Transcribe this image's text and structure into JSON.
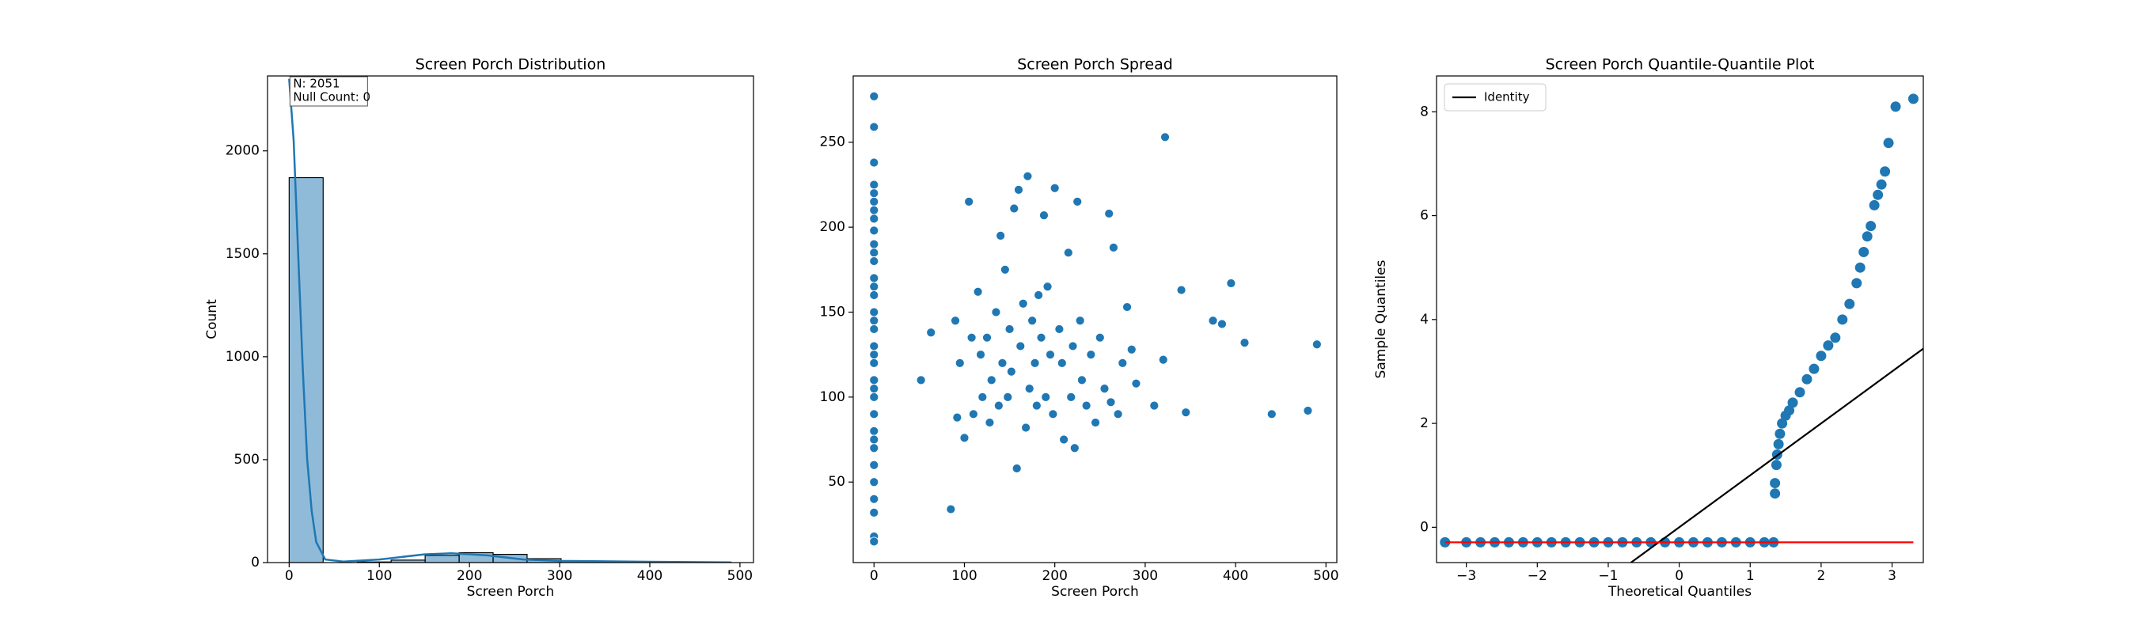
{
  "chart_data": [
    {
      "type": "histogram",
      "title": "Screen Porch Distribution",
      "xlabel": "Screen Porch",
      "ylabel": "Count",
      "bins": [
        0,
        37.7,
        75.4,
        113.1,
        150.8,
        188.5,
        226.2,
        263.9,
        301.6,
        339.3,
        377,
        414.7,
        452.4,
        490.1
      ],
      "counts": [
        1870,
        0,
        3,
        12,
        35,
        48,
        40,
        19,
        9,
        6,
        4,
        3,
        2
      ],
      "color": "#1f77b4",
      "kde": {
        "x": [
          0,
          5,
          10,
          15,
          20,
          25,
          30,
          40,
          60,
          100,
          150,
          180,
          220,
          260,
          300,
          400,
          490
        ],
        "values": [
          2350,
          2050,
          1500,
          950,
          500,
          250,
          100,
          15,
          5,
          15,
          40,
          45,
          35,
          15,
          8,
          4,
          1
        ]
      },
      "annotation": [
        "N: 2051",
        "Null Count: 0"
      ],
      "xlim": [
        -24,
        515
      ],
      "ylim": [
        0,
        2364
      ],
      "xticks": [
        0,
        100,
        200,
        300,
        400,
        500
      ],
      "yticks": [
        0,
        500,
        1000,
        1500,
        2000
      ]
    },
    {
      "type": "scatter",
      "title": "Screen Porch Spread",
      "xlabel": "Screen Porch",
      "color": "#1f77b4",
      "x": [
        0,
        0,
        0,
        0,
        0,
        0,
        0,
        0,
        0,
        0,
        0,
        0,
        0,
        0,
        0,
        0,
        0,
        0,
        0,
        0,
        0,
        0,
        0,
        0,
        0,
        0,
        0,
        0,
        0,
        0,
        0,
        0,
        0,
        0,
        52,
        63,
        85,
        90,
        92,
        95,
        100,
        105,
        108,
        110,
        115,
        118,
        120,
        125,
        128,
        130,
        135,
        138,
        140,
        142,
        145,
        148,
        150,
        152,
        155,
        158,
        160,
        162,
        165,
        168,
        170,
        172,
        175,
        178,
        180,
        182,
        185,
        188,
        190,
        192,
        195,
        198,
        200,
        205,
        208,
        210,
        215,
        218,
        220,
        222,
        225,
        228,
        230,
        235,
        240,
        245,
        250,
        255,
        260,
        262,
        265,
        270,
        275,
        280,
        285,
        290,
        310,
        320,
        322,
        340,
        345,
        375,
        385,
        395,
        410,
        440,
        480,
        490
      ],
      "values": [
        277,
        259,
        238,
        225,
        220,
        215,
        210,
        205,
        198,
        190,
        185,
        180,
        170,
        165,
        160,
        150,
        145,
        140,
        130,
        125,
        120,
        110,
        105,
        100,
        90,
        80,
        75,
        70,
        60,
        50,
        40,
        32,
        18,
        15,
        110,
        138,
        34,
        145,
        88,
        120,
        76,
        215,
        135,
        90,
        162,
        125,
        100,
        135,
        85,
        110,
        150,
        95,
        195,
        120,
        175,
        100,
        140,
        115,
        211,
        58,
        222,
        130,
        155,
        82,
        230,
        105,
        145,
        120,
        95,
        160,
        135,
        207,
        100,
        165,
        125,
        90,
        223,
        140,
        120,
        75,
        185,
        100,
        130,
        70,
        215,
        145,
        110,
        95,
        125,
        85,
        135,
        105,
        208,
        97,
        188,
        90,
        120,
        153,
        128,
        108,
        95,
        122,
        253,
        163,
        91,
        145,
        143,
        167,
        132,
        90,
        92,
        131
      ],
      "xlim": [
        -23,
        512
      ],
      "ylim": [
        2.6,
        289
      ],
      "xticks": [
        0,
        100,
        200,
        300,
        400,
        500
      ],
      "yticks": [
        50,
        100,
        150,
        200,
        250
      ]
    },
    {
      "type": "qq",
      "title": "Screen Porch Quantile-Quantile Plot",
      "xlabel": "Theoretical Quantiles",
      "ylabel": "Sample Quantiles",
      "legend": "upper left",
      "series": [
        {
          "color": "#1f77b4",
          "x": [
            -3.3,
            -3.0,
            -2.8,
            -2.6,
            -2.4,
            -2.2,
            -2.0,
            -1.8,
            -1.6,
            -1.4,
            -1.2,
            -1.0,
            -0.8,
            -0.6,
            -0.4,
            -0.2,
            0,
            0.2,
            0.4,
            0.6,
            0.8,
            1.0,
            1.2,
            1.33,
            1.35,
            1.35,
            1.37,
            1.38,
            1.4,
            1.42,
            1.45,
            1.5,
            1.55,
            1.6,
            1.7,
            1.8,
            1.9,
            2.0,
            2.1,
            2.2,
            2.3,
            2.4,
            2.5,
            2.55,
            2.6,
            2.65,
            2.7,
            2.75,
            2.8,
            2.85,
            2.9,
            2.95,
            3.05,
            3.3
          ],
          "values": [
            -0.29,
            -0.29,
            -0.29,
            -0.29,
            -0.29,
            -0.29,
            -0.29,
            -0.29,
            -0.29,
            -0.29,
            -0.29,
            -0.29,
            -0.29,
            -0.29,
            -0.29,
            -0.29,
            -0.29,
            -0.29,
            -0.29,
            -0.29,
            -0.29,
            -0.29,
            -0.29,
            -0.29,
            0.65,
            0.85,
            1.2,
            1.4,
            1.6,
            1.8,
            2.0,
            2.15,
            2.25,
            2.4,
            2.6,
            2.85,
            3.05,
            3.3,
            3.5,
            3.65,
            4.0,
            4.3,
            4.7,
            5.0,
            5.3,
            5.6,
            5.8,
            6.2,
            6.4,
            6.6,
            6.85,
            7.4,
            8.1,
            8.25
          ]
        }
      ],
      "lines": [
        {
          "name": "Identity",
          "color": "#000000",
          "x": [
            -0.68,
            3.44
          ],
          "values": [
            -0.68,
            3.44
          ]
        },
        {
          "color": "#ff0000",
          "x": [
            -3.3,
            3.3
          ],
          "values": [
            -0.29,
            -0.29
          ]
        }
      ],
      "xlim": [
        -3.42,
        3.44
      ],
      "ylim": [
        -0.68,
        8.69
      ],
      "xticks": [
        {
          "value": -3,
          "label": "−3"
        },
        {
          "value": -2,
          "label": "−2"
        },
        {
          "value": -1,
          "label": "−1"
        },
        0,
        1,
        2,
        3
      ],
      "yticks": [
        0,
        2,
        4,
        6,
        8
      ]
    }
  ]
}
